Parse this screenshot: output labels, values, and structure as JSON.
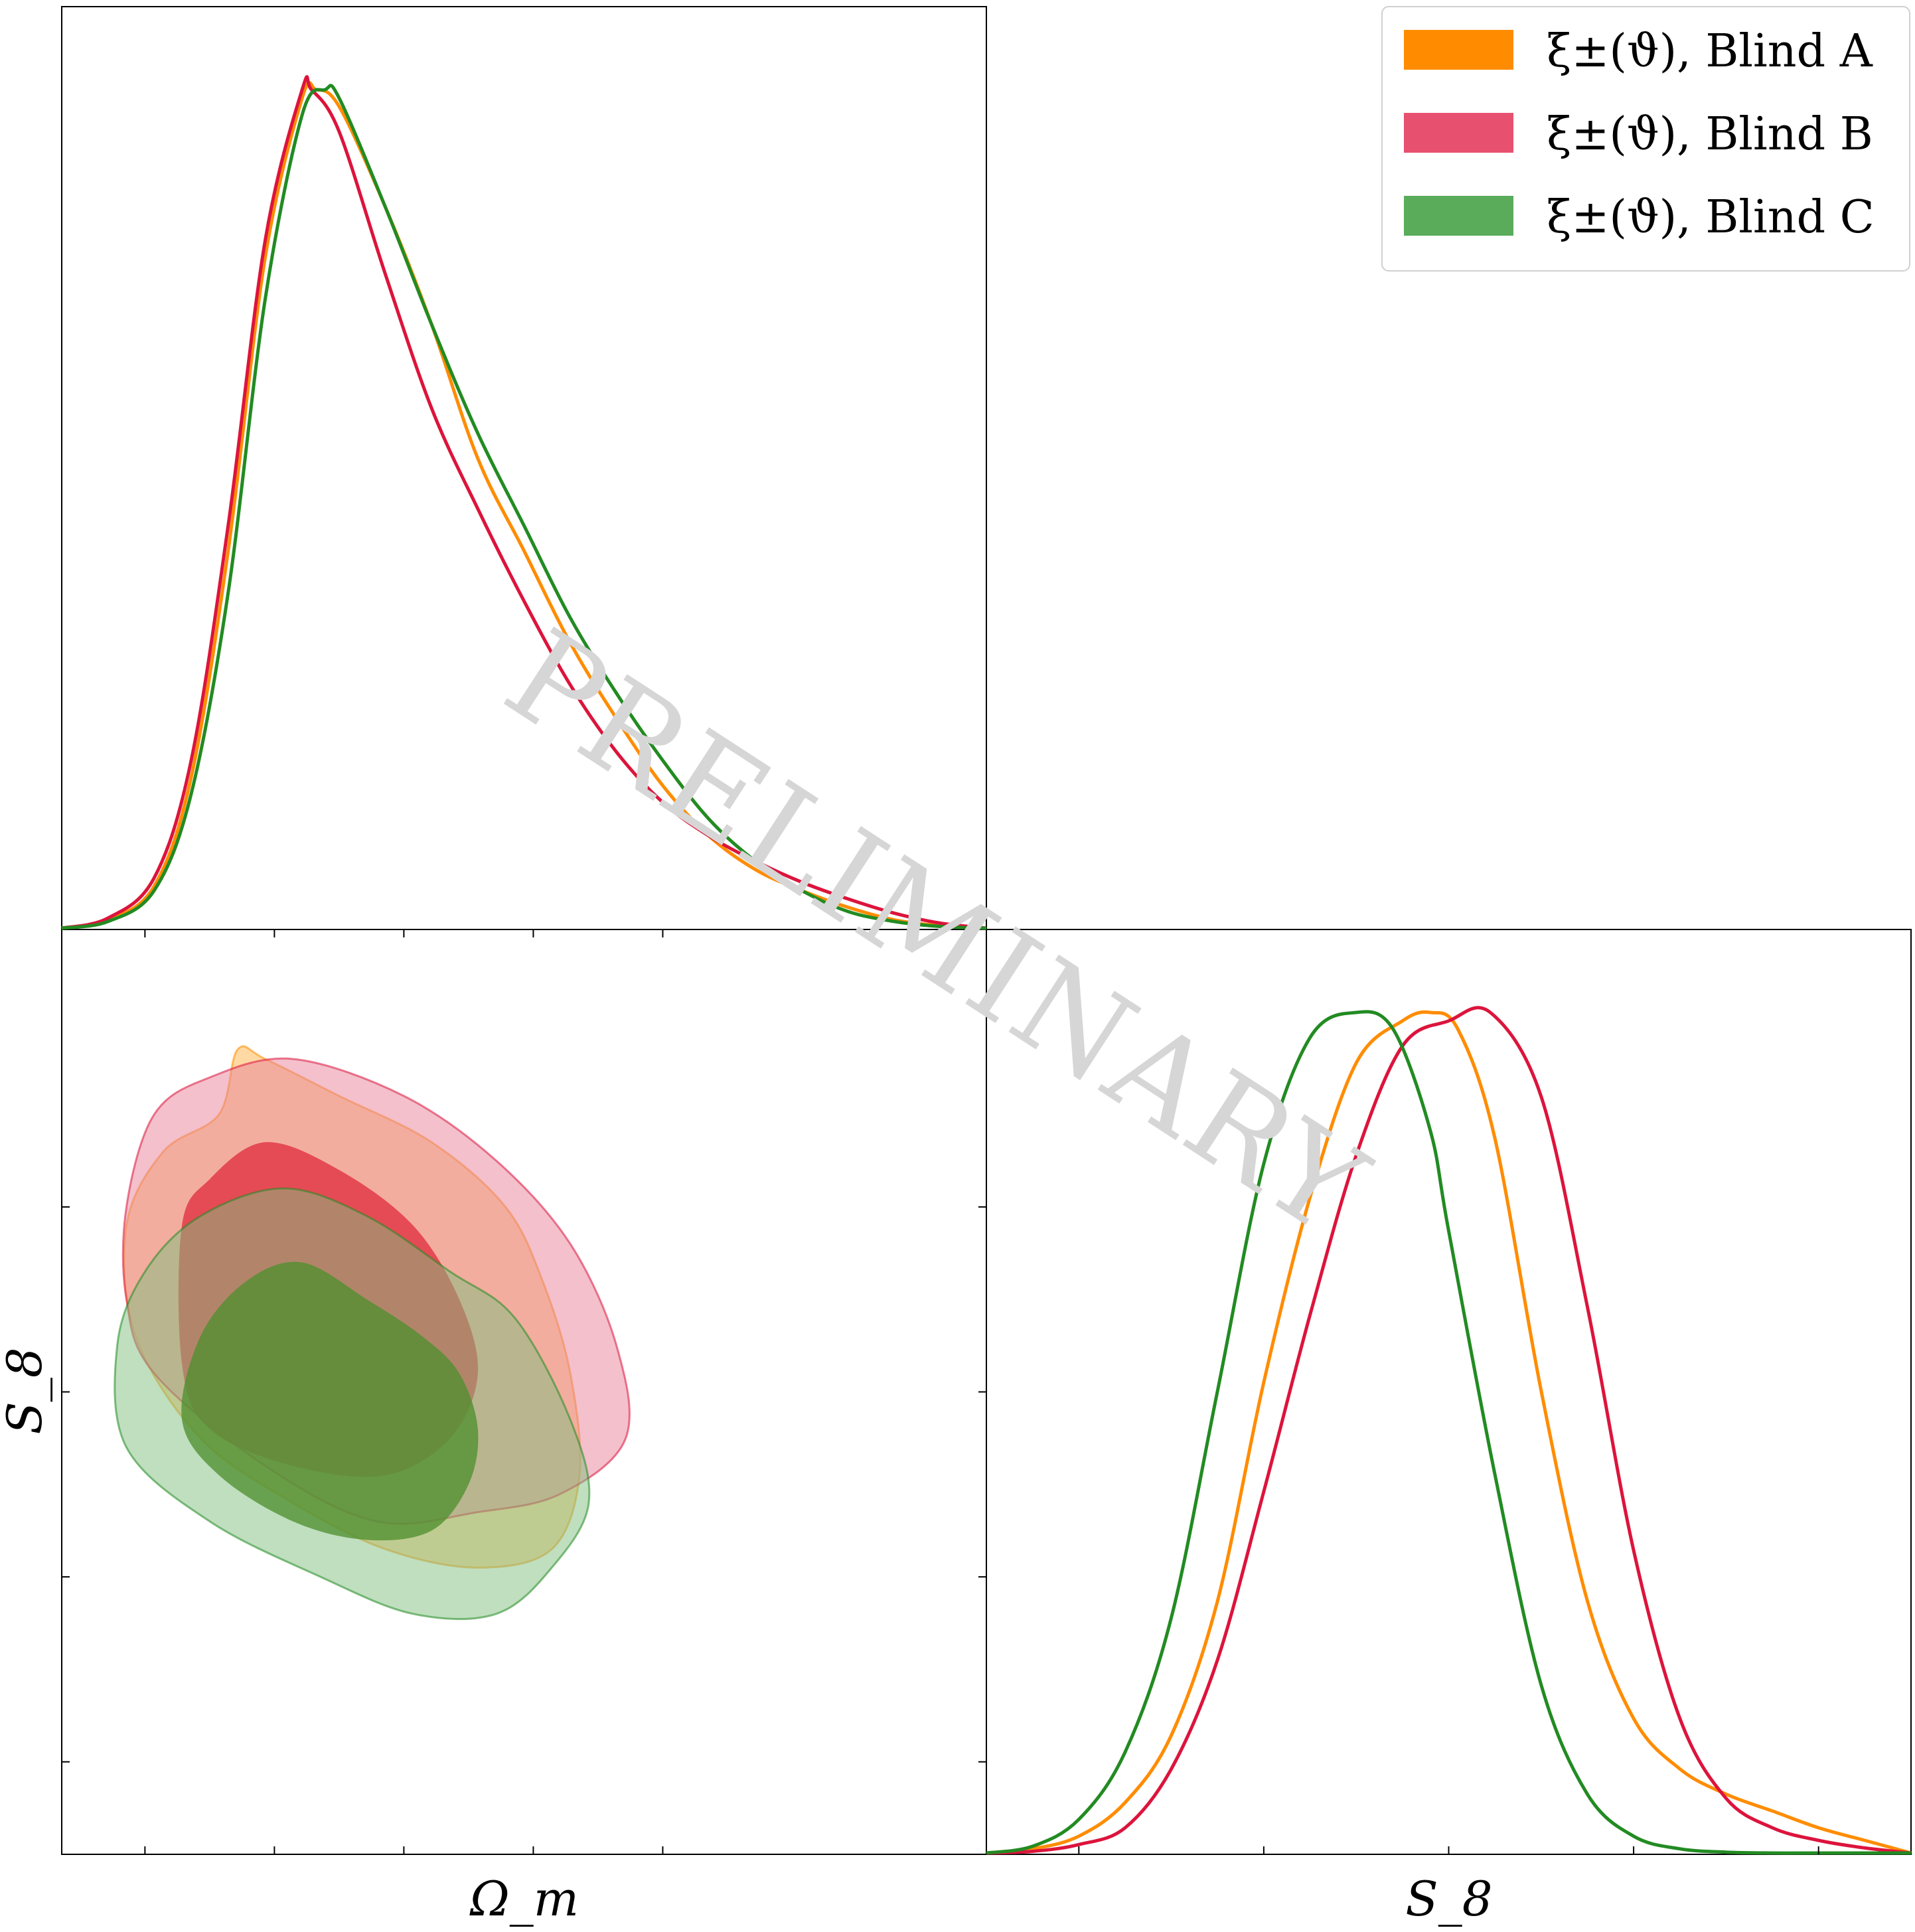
{
  "watermark": "PRELIMINARY",
  "chart_data": [
    {
      "type": "line",
      "panel": "marginal Omega_m",
      "title": "",
      "xlabel": "",
      "ylabel": "",
      "tick_labels": "none",
      "grid": false,
      "series": [
        {
          "name": "ξ±(ϑ), Blind A",
          "color": "#ff8c00",
          "x": [
            0.0,
            0.05,
            0.1,
            0.14,
            0.18,
            0.22,
            0.26,
            0.275,
            0.3,
            0.35,
            0.4,
            0.45,
            0.5,
            0.55,
            0.6,
            0.65,
            0.7,
            0.75,
            0.8,
            0.85,
            0.9,
            0.95,
            1.0
          ],
          "y": [
            0.0,
            0.01,
            0.05,
            0.18,
            0.45,
            0.8,
            0.99,
            1.0,
            0.98,
            0.86,
            0.72,
            0.56,
            0.45,
            0.34,
            0.25,
            0.17,
            0.11,
            0.07,
            0.045,
            0.025,
            0.01,
            0.003,
            0.0
          ]
        },
        {
          "name": "ξ±(ϑ), Blind B",
          "color": "#dc143c",
          "x": [
            0.0,
            0.05,
            0.1,
            0.14,
            0.18,
            0.22,
            0.26,
            0.27,
            0.3,
            0.35,
            0.4,
            0.45,
            0.5,
            0.55,
            0.6,
            0.65,
            0.7,
            0.75,
            0.8,
            0.85,
            0.9,
            0.95,
            1.0
          ],
          "y": [
            0.0,
            0.012,
            0.06,
            0.2,
            0.48,
            0.82,
            1.0,
            1.0,
            0.95,
            0.78,
            0.62,
            0.5,
            0.39,
            0.29,
            0.21,
            0.15,
            0.11,
            0.08,
            0.055,
            0.035,
            0.018,
            0.006,
            0.0
          ]
        },
        {
          "name": "ξ±(ϑ), Blind C",
          "color": "#228b22",
          "x": [
            0.0,
            0.05,
            0.1,
            0.14,
            0.18,
            0.22,
            0.26,
            0.285,
            0.3,
            0.35,
            0.4,
            0.45,
            0.5,
            0.55,
            0.6,
            0.65,
            0.7,
            0.75,
            0.8,
            0.85,
            0.9,
            0.95,
            1.0
          ],
          "y": [
            0.0,
            0.008,
            0.045,
            0.16,
            0.4,
            0.75,
            0.97,
            1.0,
            0.99,
            0.86,
            0.72,
            0.59,
            0.48,
            0.37,
            0.28,
            0.2,
            0.13,
            0.08,
            0.045,
            0.02,
            0.008,
            0.002,
            0.0
          ]
        }
      ]
    },
    {
      "type": "line",
      "panel": "marginal S_8",
      "title": "",
      "xlabel": "S_8",
      "ylabel": "",
      "tick_labels": "none",
      "grid": false,
      "series": [
        {
          "name": "ξ±(ϑ), Blind A",
          "color": "#ff8c00",
          "x": [
            0.0,
            0.05,
            0.1,
            0.15,
            0.2,
            0.25,
            0.3,
            0.35,
            0.4,
            0.45,
            0.48,
            0.51,
            0.55,
            0.6,
            0.65,
            0.7,
            0.75,
            0.8,
            0.85,
            0.9,
            0.95,
            1.0
          ],
          "y": [
            0.0,
            0.005,
            0.02,
            0.06,
            0.14,
            0.3,
            0.56,
            0.78,
            0.94,
            0.99,
            1.0,
            0.98,
            0.85,
            0.55,
            0.3,
            0.16,
            0.1,
            0.07,
            0.05,
            0.03,
            0.015,
            0.0
          ]
        },
        {
          "name": "ξ±(ϑ), Blind B",
          "color": "#dc143c",
          "x": [
            0.0,
            0.05,
            0.1,
            0.15,
            0.2,
            0.25,
            0.3,
            0.35,
            0.4,
            0.45,
            0.5,
            0.545,
            0.6,
            0.65,
            0.7,
            0.75,
            0.8,
            0.85,
            0.9,
            0.95,
            1.0
          ],
          "y": [
            0.0,
            0.002,
            0.01,
            0.03,
            0.1,
            0.23,
            0.43,
            0.64,
            0.83,
            0.96,
            0.99,
            1.0,
            0.9,
            0.65,
            0.36,
            0.16,
            0.065,
            0.03,
            0.015,
            0.006,
            0.0
          ]
        },
        {
          "name": "ξ±(ϑ), Blind C",
          "color": "#228b22",
          "x": [
            0.0,
            0.05,
            0.1,
            0.15,
            0.2,
            0.25,
            0.3,
            0.35,
            0.4,
            0.44,
            0.48,
            0.5,
            0.55,
            0.6,
            0.65,
            0.7,
            0.75,
            0.8,
            0.85,
            0.9,
            1.0
          ],
          "y": [
            0.0,
            0.008,
            0.04,
            0.12,
            0.28,
            0.55,
            0.82,
            0.97,
            1.0,
            0.98,
            0.86,
            0.74,
            0.45,
            0.2,
            0.07,
            0.02,
            0.005,
            0.001,
            0.0,
            0.0,
            0.0
          ]
        }
      ]
    },
    {
      "type": "contour",
      "panel": "joint Omega_m vs S_8",
      "title": "",
      "xlabel": "Ω_m",
      "ylabel": "S_8",
      "tick_labels": "none",
      "grid": false,
      "levels": [
        "68%",
        "95%"
      ],
      "series": [
        {
          "name": "ξ±(ϑ), Blind A",
          "color": "#ff8c00",
          "outer": [
            [
              0.19,
              0.87
            ],
            [
              0.22,
              0.86
            ],
            [
              0.3,
              0.82
            ],
            [
              0.4,
              0.77
            ],
            [
              0.48,
              0.7
            ],
            [
              0.52,
              0.62
            ],
            [
              0.55,
              0.52
            ],
            [
              0.56,
              0.41
            ],
            [
              0.53,
              0.33
            ],
            [
              0.45,
              0.31
            ],
            [
              0.35,
              0.33
            ],
            [
              0.25,
              0.38
            ],
            [
              0.15,
              0.45
            ],
            [
              0.08,
              0.56
            ],
            [
              0.07,
              0.68
            ],
            [
              0.11,
              0.76
            ],
            [
              0.17,
              0.8
            ]
          ],
          "inner": []
        },
        {
          "name": "ξ±(ϑ), Blind B",
          "color": "#dc143c",
          "outer": [
            [
              0.1,
              0.8
            ],
            [
              0.16,
              0.84
            ],
            [
              0.25,
              0.86
            ],
            [
              0.37,
              0.82
            ],
            [
              0.47,
              0.75
            ],
            [
              0.55,
              0.66
            ],
            [
              0.6,
              0.55
            ],
            [
              0.61,
              0.45
            ],
            [
              0.54,
              0.39
            ],
            [
              0.45,
              0.37
            ],
            [
              0.34,
              0.36
            ],
            [
              0.22,
              0.42
            ],
            [
              0.1,
              0.52
            ],
            [
              0.07,
              0.6
            ],
            [
              0.07,
              0.7
            ]
          ],
          "inner": [
            [
              0.13,
              0.68
            ],
            [
              0.16,
              0.73
            ],
            [
              0.22,
              0.77
            ],
            [
              0.3,
              0.74
            ],
            [
              0.38,
              0.68
            ],
            [
              0.43,
              0.6
            ],
            [
              0.45,
              0.52
            ],
            [
              0.42,
              0.45
            ],
            [
              0.35,
              0.41
            ],
            [
              0.25,
              0.42
            ],
            [
              0.16,
              0.46
            ],
            [
              0.13,
              0.53
            ]
          ]
        },
        {
          "name": "ξ±(ϑ), Blind C",
          "color": "#228b22",
          "outer": [
            [
              0.15,
              0.69
            ],
            [
              0.24,
              0.72
            ],
            [
              0.33,
              0.69
            ],
            [
              0.42,
              0.63
            ],
            [
              0.49,
              0.58
            ],
            [
              0.55,
              0.47
            ],
            [
              0.57,
              0.38
            ],
            [
              0.53,
              0.31
            ],
            [
              0.47,
              0.26
            ],
            [
              0.38,
              0.26
            ],
            [
              0.28,
              0.3
            ],
            [
              0.16,
              0.36
            ],
            [
              0.07,
              0.44
            ],
            [
              0.06,
              0.55
            ],
            [
              0.09,
              0.63
            ]
          ],
          "inner": [
            [
              0.15,
              0.56
            ],
            [
              0.2,
              0.62
            ],
            [
              0.26,
              0.64
            ],
            [
              0.33,
              0.6
            ],
            [
              0.39,
              0.56
            ],
            [
              0.43,
              0.52
            ],
            [
              0.45,
              0.46
            ],
            [
              0.44,
              0.4
            ],
            [
              0.4,
              0.35
            ],
            [
              0.33,
              0.34
            ],
            [
              0.25,
              0.36
            ],
            [
              0.17,
              0.41
            ],
            [
              0.13,
              0.47
            ]
          ]
        }
      ]
    }
  ],
  "legend": {
    "placement": "top-right",
    "entries": [
      {
        "label": "ξ±(ϑ), Blind A",
        "color": "#ff8c00"
      },
      {
        "label": "ξ±(ϑ), Blind B",
        "color": "#e8506f"
      },
      {
        "label": "ξ±(ϑ), Blind C",
        "color": "#5aab5a"
      }
    ]
  }
}
